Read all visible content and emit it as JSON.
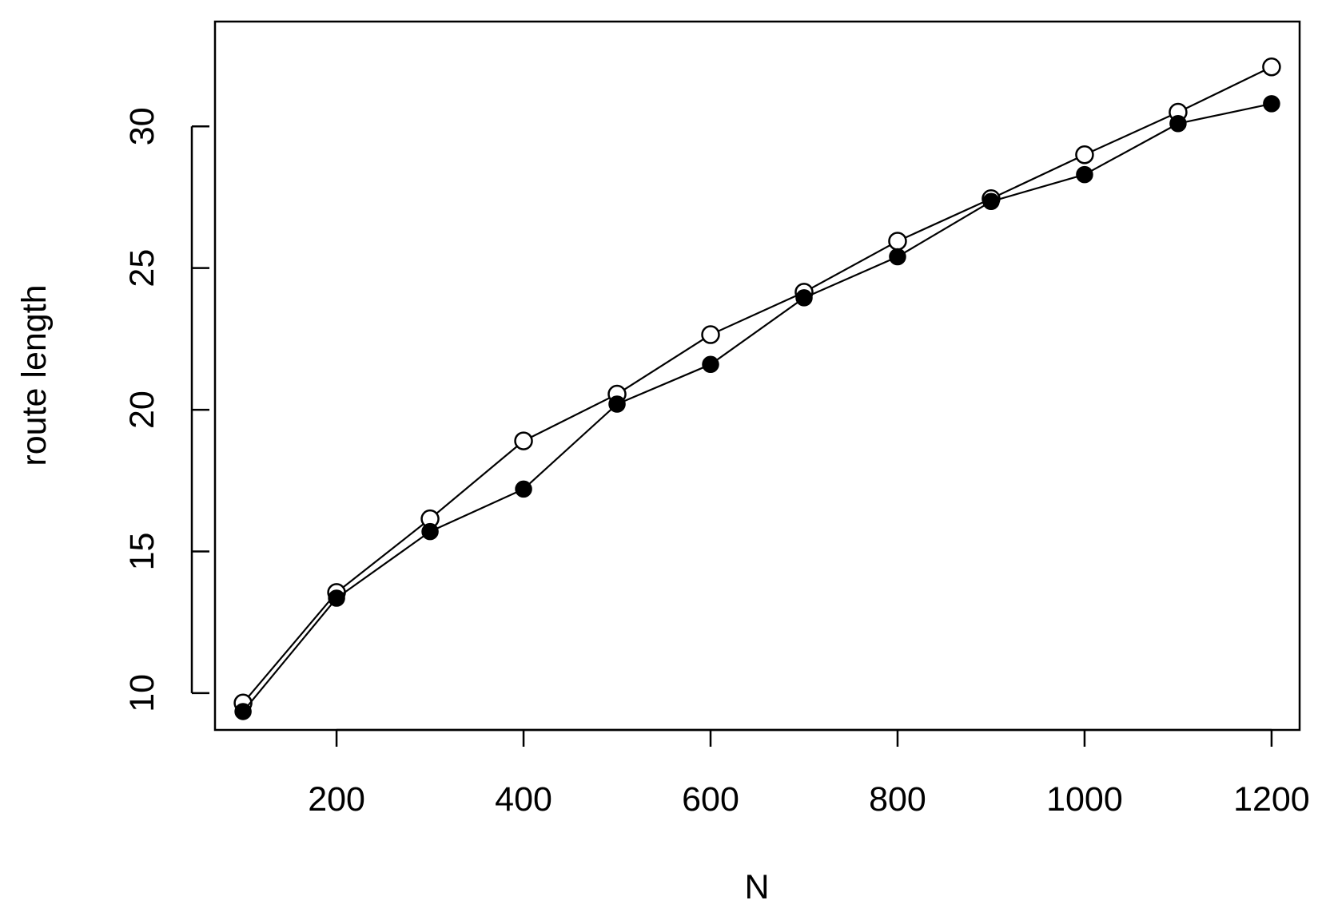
{
  "chart_data": {
    "type": "line",
    "title": "",
    "xlabel": "N",
    "ylabel": "route length",
    "xlim": [
      70,
      1230
    ],
    "ylim": [
      8.7,
      33.7
    ],
    "x_ticks": [
      200,
      400,
      600,
      800,
      1000,
      1200
    ],
    "x_tick_labels": [
      "200",
      "400",
      "600",
      "800",
      "1000",
      "1200"
    ],
    "y_ticks": [
      10,
      15,
      20,
      25,
      30
    ],
    "y_tick_labels": [
      "10",
      "15",
      "20",
      "25",
      "30"
    ],
    "grid": false,
    "legend": "none",
    "x": [
      100,
      200,
      300,
      400,
      500,
      600,
      700,
      800,
      900,
      1000,
      1100,
      1200
    ],
    "series": [
      {
        "marker": "open-circle",
        "color": "#000000",
        "values": [
          9.65,
          13.55,
          16.15,
          18.9,
          20.55,
          22.65,
          24.15,
          25.95,
          27.45,
          29.0,
          30.5,
          32.1
        ]
      },
      {
        "marker": "filled-circle",
        "color": "#000000",
        "values": [
          9.35,
          13.35,
          15.7,
          17.2,
          20.2,
          21.6,
          23.95,
          25.4,
          27.35,
          28.3,
          30.1,
          30.8
        ]
      }
    ]
  }
}
